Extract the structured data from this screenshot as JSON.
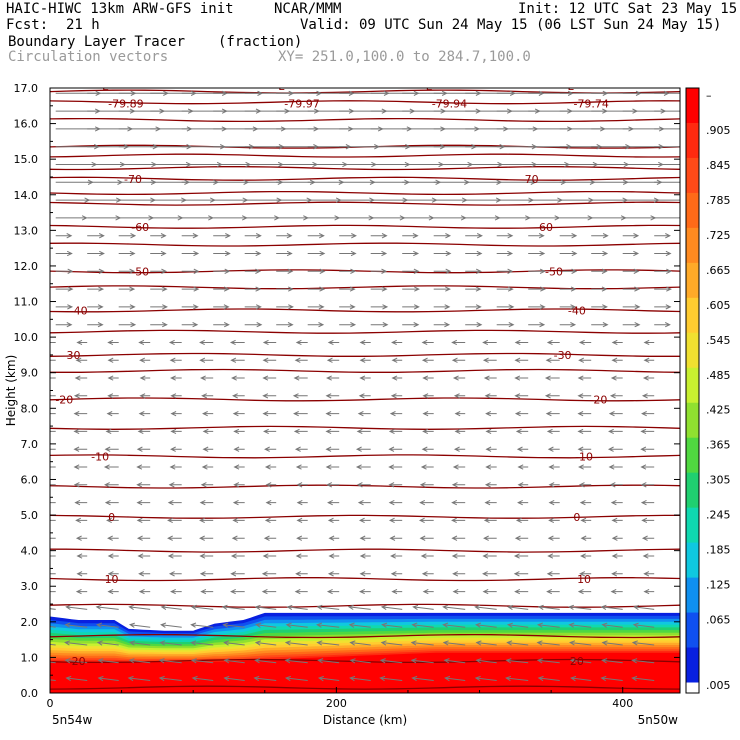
{
  "header": {
    "model": "HAIC-HIWC 13km ARW-GFS init",
    "org": "NCAR/MMM",
    "init": "Init: 12 UTC Sat 23 May 15",
    "fcst_label": "Fcst:",
    "fcst_value": "21 h",
    "valid": "Valid: 09 UTC Sun 24 May 15 (06 LST Sun 24 May 15)",
    "field": "Boundary Layer Tracer",
    "units": "(fraction)",
    "vectors": "Circulation vectors",
    "xy": "XY= 251.0,100.0 to 284.7,100.0"
  },
  "chart_data": {
    "type": "cross-section",
    "ylabel": "Height (km)",
    "xlabel": "Distance (km)",
    "xlim": [
      0,
      440
    ],
    "ylim": [
      0,
      17
    ],
    "y_ticks": [
      "0.0",
      "1.0",
      "2.0",
      "3.0",
      "4.0",
      "5.0",
      "6.0",
      "7.0",
      "8.0",
      "9.0",
      "10.0",
      "11.0",
      "12.0",
      "13.0",
      "14.0",
      "15.0",
      "16.0",
      "17.0"
    ],
    "x_ticks": [
      "0",
      "200",
      "400"
    ],
    "x_tick_values": [
      0,
      200,
      400
    ],
    "left_endpoint": "5n54w",
    "right_endpoint": "5n50w",
    "colorbar": {
      "labels": [
        "–",
        ".905",
        ".845",
        ".785",
        ".725",
        ".665",
        ".605",
        ".545",
        ".485",
        ".425",
        ".365",
        ".305",
        ".245",
        ".185",
        ".125",
        ".065",
        ".005"
      ],
      "colors": [
        "#ff0000",
        "#ff2a10",
        "#ff4a18",
        "#ff6a18",
        "#ff8a20",
        "#ffaa28",
        "#ffcc30",
        "#f0e030",
        "#c8f030",
        "#90e030",
        "#50d840",
        "#20d070",
        "#10d8b0",
        "#10c8e0",
        "#1090f0",
        "#1050f0",
        "#0820e0"
      ]
    },
    "temperature_contours": [
      {
        "label": "-80",
        "height_km": 16.9
      },
      {
        "label": "-70",
        "height_km": 14.45
      },
      {
        "label": "-60",
        "height_km": 13.1
      },
      {
        "label": "-50",
        "height_km": 11.85
      },
      {
        "label": "-40",
        "height_km": 10.75
      },
      {
        "label": "-30",
        "height_km": 9.5
      },
      {
        "label": "-20",
        "height_km": 8.25
      },
      {
        "label": "-10",
        "height_km": 6.65
      },
      {
        "label": "0",
        "height_km": 4.95
      },
      {
        "label": "10",
        "height_km": 3.2
      },
      {
        "label": "20",
        "height_km": 0.9
      }
    ],
    "extra_contours_km": [
      0.15,
      1.6,
      2.45,
      4.0,
      5.8,
      7.45,
      9.05,
      10.15,
      11.4,
      12.6,
      13.75,
      14.05,
      14.75,
      15.1,
      15.35,
      16.1,
      16.6
    ],
    "min_labels": [
      {
        "label": "-79.89",
        "x_km": 42
      },
      {
        "label": "-79.97",
        "x_km": 165
      },
      {
        "label": "-79.94",
        "x_km": 268
      },
      {
        "label": "-79.74",
        "x_km": 367
      }
    ],
    "contour_label_positions_km": {
      "-70": [
        58,
        335
      ],
      "-60": [
        63,
        345
      ],
      "-50": [
        63,
        352
      ],
      "-40": [
        20,
        368
      ],
      "-30": [
        15,
        358
      ],
      "-20": [
        10,
        383
      ],
      "-10": [
        35,
        373
      ],
      "0": [
        43,
        368
      ],
      "10": [
        43,
        373
      ],
      "20": [
        20,
        368
      ]
    },
    "tracer_top_km": [
      [
        0,
        2.15
      ],
      [
        20,
        2.05
      ],
      [
        45,
        2.05
      ],
      [
        55,
        1.8
      ],
      [
        80,
        1.75
      ],
      [
        100,
        1.75
      ],
      [
        115,
        1.95
      ],
      [
        135,
        2.05
      ],
      [
        150,
        2.25
      ],
      [
        250,
        2.25
      ],
      [
        440,
        2.25
      ]
    ]
  }
}
